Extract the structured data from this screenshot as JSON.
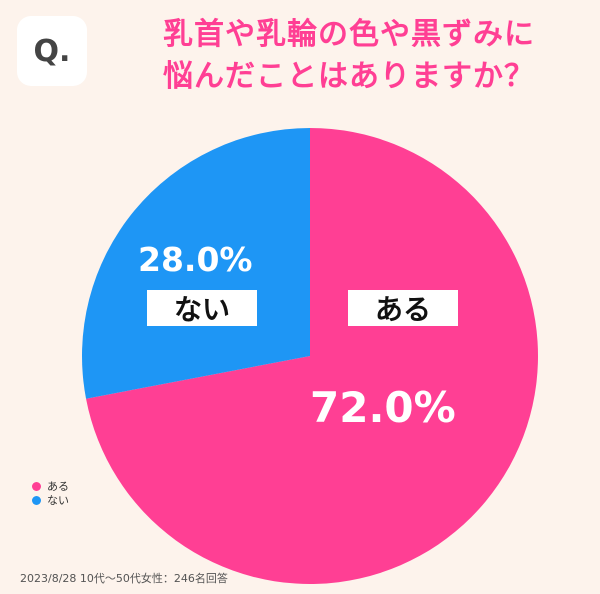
{
  "badge": "Q.",
  "question": {
    "line1": "乳首や乳輪の色や黒ずみに",
    "line2": "悩んだことはありますか？"
  },
  "chart_data": {
    "type": "pie",
    "title": "乳首や乳輪の色や黒ずみに悩んだことはありますか？",
    "categories": [
      "ある",
      "ない"
    ],
    "values": [
      72.0,
      28.0
    ],
    "value_labels": [
      "72.0%",
      "28.0%"
    ],
    "colors": [
      "#ff3f94",
      "#1e96f5"
    ],
    "legend": "bottom-left"
  },
  "legend": [
    {
      "label": "ある",
      "color": "#ff3f94"
    },
    {
      "label": "ない",
      "color": "#1e96f5"
    }
  ],
  "source": "2023/8/28 10代〜50代女性：246名回答"
}
